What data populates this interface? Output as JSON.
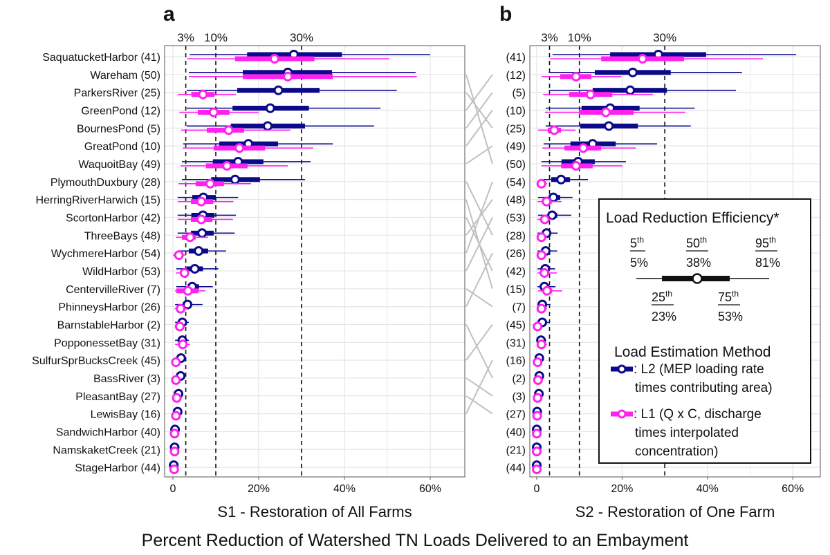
{
  "colors": {
    "L2": "#0a0a8a",
    "L1": "#ff22ee",
    "grid": "#e6e6e6",
    "connector": "#c0c0c0"
  },
  "figure_title": "Percent Reduction of Watershed TN Loads Delivered to an Embayment",
  "chart_data": [
    {
      "panel_label": "a",
      "type": "boxplot-horizontal",
      "xlabel": "S1 - Restoration of All Farms",
      "xlim": [
        -2,
        68
      ],
      "x_ticks": [
        0,
        20,
        40,
        60
      ],
      "x_tick_labels": [
        "0",
        "20%",
        "40%",
        "60%"
      ],
      "reference_lines": [
        3,
        10,
        30
      ],
      "reference_labels": [
        "3%",
        "10%",
        "30%"
      ],
      "grid": true,
      "categories": [
        "SaquatucketHarbor (41)",
        "Wareham (50)",
        "ParkersRiver (25)",
        "GreenPond (12)",
        "BournesPond (5)",
        "GreatPond (10)",
        "WaquoitBay (49)",
        "PlymouthDuxbury (28)",
        "HerringRiverHarwich (15)",
        "ScortonHarbor (42)",
        "ThreeBays (48)",
        "WychmereHarbor (54)",
        "WildHarbor (53)",
        "CentervilleRiver (7)",
        "PhinneysHarbor (26)",
        "BarnstableHarbor (2)",
        "PopponessetBay (31)",
        "SulfurSprBucksCreek (45)",
        "BassRiver (3)",
        "PleasantBay (27)",
        "LewisBay (16)",
        "SandwichHarbor (40)",
        "NamskaketCreek (21)",
        "StageHarbor (44)"
      ],
      "ids": [
        41,
        50,
        25,
        12,
        5,
        10,
        49,
        28,
        15,
        42,
        48,
        54,
        53,
        7,
        26,
        2,
        31,
        45,
        3,
        27,
        16,
        40,
        21,
        44
      ],
      "series": [
        {
          "name": "L2",
          "stats_p5_p25_p50_p75_p95": [
            [
              3.9,
              17.3,
              28.2,
              39.4,
              60
            ],
            [
              3.7,
              16.3,
              26.8,
              37.1,
              56.6
            ],
            [
              3.2,
              15,
              24.6,
              34.2,
              52.2
            ],
            [
              3.2,
              13.9,
              22.7,
              31.7,
              48.4
            ],
            [
              3.2,
              13.5,
              22.1,
              30.8,
              46.9
            ],
            [
              2.4,
              10.8,
              17.6,
              24.5,
              37.3
            ],
            [
              2.1,
              9.3,
              15.2,
              21.1,
              32.1
            ],
            [
              2.1,
              8.9,
              14.5,
              20.3,
              30.8
            ],
            [
              1.1,
              4.5,
              7.1,
              10,
              15.2
            ],
            [
              1.1,
              4.3,
              7,
              9.7,
              14.7
            ],
            [
              1.1,
              4.2,
              6.8,
              9.5,
              14.4
            ],
            [
              1.1,
              3.7,
              6,
              8.2,
              12.4
            ],
            [
              0.8,
              3.2,
              5.1,
              7,
              10.6
            ],
            [
              0.8,
              3.5,
              4.5,
              6.1,
              9.3
            ],
            [
              0.5,
              2.3,
              3.4,
              4.2,
              6.9
            ],
            [
              0.5,
              1.6,
              2.2,
              2.9,
              3.7
            ],
            [
              0.5,
              1.6,
              2.2,
              2.9,
              3.7
            ],
            [
              0.8,
              1.4,
              1.9,
              2.5,
              3.1
            ],
            [
              0.8,
              1.3,
              1.8,
              2.3,
              2.9
            ],
            [
              0.4,
              0.9,
              1.3,
              1.7,
              2.2
            ],
            [
              0.3,
              0.8,
              1.1,
              1.4,
              1.9
            ],
            [
              0.1,
              0.3,
              0.5,
              0.7,
              0.9
            ],
            [
              0.1,
              0.2,
              0.4,
              0.6,
              0.8
            ],
            [
              0,
              0.1,
              0.2,
              0.3,
              0.5
            ]
          ]
        },
        {
          "name": "L1",
          "stats_p5_p25_p50_p75_p95": [
            [
              3.4,
              14.5,
              23.7,
              33,
              50.5
            ],
            [
              3.7,
              16.3,
              26.8,
              37.3,
              56.9
            ],
            [
              1.1,
              4.3,
              7,
              9.7,
              14.7
            ],
            [
              1.5,
              5.8,
              9.5,
              13.2,
              20
            ],
            [
              1.9,
              7.9,
              13,
              16.6,
              27.4
            ],
            [
              2.3,
              9.5,
              15.5,
              21.5,
              32.7
            ],
            [
              1.8,
              7.7,
              12.6,
              17.4,
              26.8
            ],
            [
              1.3,
              5.3,
              8.7,
              11.9,
              18.2
            ],
            [
              1.1,
              4.2,
              6.6,
              9.4,
              14.1
            ],
            [
              1.1,
              4.2,
              6.6,
              9.2,
              14
            ],
            [
              0.7,
              2.1,
              4,
              5.3,
              8.2
            ],
            [
              0,
              0.6,
              1.4,
              2.2,
              3
            ],
            [
              0.7,
              1.8,
              2.7,
              3.2,
              3.7
            ],
            [
              0.5,
              0.8,
              3.5,
              6,
              7.6
            ],
            [
              0.4,
              1,
              1.8,
              2.6,
              3.4
            ],
            [
              0.4,
              1,
              1.6,
              2.2,
              2.8
            ],
            [
              0.5,
              1.3,
              2.3,
              3.2,
              4
            ],
            [
              0.1,
              0.4,
              0.7,
              1,
              1.3
            ],
            [
              0.1,
              0.4,
              0.7,
              1,
              1.3
            ],
            [
              0.1,
              0.5,
              0.9,
              1.2,
              1.5
            ],
            [
              0.1,
              0.4,
              0.7,
              1,
              1.3
            ],
            [
              0,
              0.2,
              0.4,
              0.6,
              0.8
            ],
            [
              0,
              0.2,
              0.4,
              0.6,
              0.8
            ],
            [
              0,
              0.1,
              0.3,
              0.5,
              0.7
            ]
          ]
        }
      ]
    },
    {
      "panel_label": "b",
      "type": "boxplot-horizontal",
      "xlabel": "S2 - Restoration of One Farm",
      "xlim": [
        -1.5,
        66
      ],
      "x_ticks": [
        0,
        20,
        40,
        60
      ],
      "x_tick_labels": [
        "0",
        "20%",
        "40%",
        "60%"
      ],
      "reference_lines": [
        3,
        10,
        30
      ],
      "reference_labels": [
        "3%",
        "10%",
        "30%"
      ],
      "grid": true,
      "categories": [
        "(41)",
        "(12)",
        "(5)",
        "(10)",
        "(25)",
        "(49)",
        "(50)",
        "(54)",
        "(48)",
        "(53)",
        "(28)",
        "(26)",
        "(42)",
        "(15)",
        "(7)",
        "(45)",
        "(31)",
        "(16)",
        "(2)",
        "(3)",
        "(27)",
        "(40)",
        "(21)",
        "(44)"
      ],
      "ids": [
        41,
        12,
        5,
        10,
        25,
        49,
        50,
        54,
        48,
        53,
        28,
        26,
        42,
        15,
        7,
        45,
        31,
        16,
        2,
        3,
        27,
        40,
        21,
        44
      ],
      "series": [
        {
          "name": "L2",
          "stats_p5_p25_p50_p75_p95": [
            [
              3.7,
              17.2,
              28.5,
              39.7,
              60.8
            ],
            [
              2.8,
              13.6,
              22.5,
              31.4,
              48.1
            ],
            [
              2.8,
              13.1,
              21.9,
              30.5,
              46.7
            ],
            [
              2.1,
              10.5,
              17.2,
              24.1,
              37
            ],
            [
              2.1,
              10.2,
              16.9,
              23.7,
              36.1
            ],
            [
              1.6,
              7.9,
              13.1,
              18.5,
              28.2
            ],
            [
              1.1,
              5.8,
              9.7,
              13.6,
              20.9
            ],
            [
              1.6,
              3.4,
              5.7,
              7.8,
              12
            ],
            [
              0.3,
              2.8,
              3.9,
              5.5,
              8.4
            ],
            [
              0.3,
              2.6,
              3.6,
              4.8,
              8.1
            ],
            [
              0.2,
              1.6,
              2.3,
              3.1,
              4.9
            ],
            [
              0.2,
              1.5,
              2.1,
              2.9,
              4.8
            ],
            [
              0.2,
              1.4,
              2,
              2.7,
              4.3
            ],
            [
              0.2,
              1.3,
              1.8,
              2.5,
              4.4
            ],
            [
              0.2,
              0.9,
              1.3,
              1.8,
              3.2
            ],
            [
              0.3,
              0.9,
              1.3,
              1.8,
              2.9
            ],
            [
              0.2,
              0.7,
              1,
              1.4,
              2.2
            ],
            [
              0.1,
              0.4,
              0.6,
              0.9,
              1.4
            ],
            [
              0.1,
              0.4,
              0.6,
              0.9,
              1.4
            ],
            [
              0.1,
              0.3,
              0.5,
              0.8,
              1.2
            ],
            [
              0,
              0.1,
              0.1,
              0.3,
              0.6
            ],
            [
              0,
              0,
              0,
              0.1,
              0.3
            ],
            [
              0,
              0,
              0,
              0.1,
              0.3
            ],
            [
              0,
              0,
              0,
              0.1,
              0.3
            ]
          ]
        },
        {
          "name": "L1",
          "stats_p5_p25_p50_p75_p95": [
            [
              3.1,
              15.1,
              24.8,
              34.5,
              53
            ],
            [
              1.1,
              5.5,
              9.2,
              12.8,
              19.8
            ],
            [
              1.5,
              7.6,
              12.6,
              17.7,
              27.2
            ],
            [
              1.9,
              9.9,
              16.2,
              22.7,
              34.8
            ],
            [
              0.3,
              2.6,
              4.1,
              5.7,
              9.1
            ],
            [
              1.3,
              6.5,
              10.9,
              15.1,
              23.2
            ],
            [
              1.1,
              5.7,
              9.2,
              13.1,
              20.1
            ],
            [
              0.2,
              0.6,
              1.1,
              1.6,
              2.4
            ],
            [
              0.2,
              1.5,
              2.3,
              3.5,
              5.8
            ],
            [
              0.2,
              1.2,
              1.9,
              2.6,
              3.8
            ],
            [
              0.1,
              0.7,
              1.1,
              1.6,
              2.4
            ],
            [
              0.1,
              0.7,
              1.1,
              1.6,
              2.4
            ],
            [
              0.2,
              1.2,
              1.8,
              2.6,
              4.7
            ],
            [
              0.3,
              1.5,
              2.4,
              3.6,
              6
            ],
            [
              0.1,
              0.7,
              1.1,
              1.6,
              2.4
            ],
            [
              0,
              0.1,
              0.2,
              0.4,
              0.8
            ],
            [
              0.1,
              0.7,
              1.1,
              1.6,
              2.4
            ],
            [
              0,
              0.1,
              0.2,
              0.4,
              0.8
            ],
            [
              0,
              0.2,
              0.3,
              0.5,
              0.9
            ],
            [
              0,
              0.1,
              0.2,
              0.4,
              0.8
            ],
            [
              0,
              0.1,
              0.1,
              0.3,
              0.6
            ],
            [
              0,
              0,
              0,
              0.1,
              0.3
            ],
            [
              0,
              0,
              0,
              0.1,
              0.3
            ],
            [
              0,
              0,
              0,
              0.1,
              0.3
            ]
          ]
        }
      ]
    }
  ],
  "legend": {
    "title": "Load Reduction Efficiency*",
    "percentiles": [
      {
        "label": "5",
        "suffix": "th",
        "value": "5%"
      },
      {
        "label": "25",
        "suffix": "th",
        "value": "23%"
      },
      {
        "label": "50",
        "suffix": "th",
        "value": "38%"
      },
      {
        "label": "75",
        "suffix": "th",
        "value": "53%"
      },
      {
        "label": "95",
        "suffix": "th",
        "value": "81%"
      }
    ],
    "method_title": "Load Estimation Method",
    "entries": [
      {
        "series": "L2",
        "lines": [
          ": L2 (MEP loading rate",
          "times contributing area)"
        ]
      },
      {
        "series": "L1",
        "lines": [
          ": L1 (Q x C, discharge",
          "times interpolated",
          "concentration)"
        ]
      }
    ]
  }
}
